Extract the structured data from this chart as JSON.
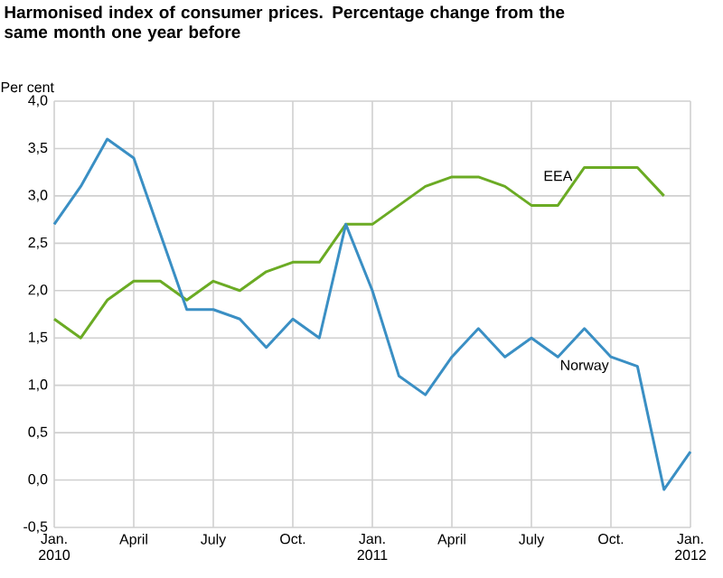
{
  "chart_data": {
    "type": "line",
    "title": "Harmonised index of consumer prices. Percentage change from the same month one year before",
    "ylabel": "Per cent",
    "x": [
      "2010-01",
      "2010-02",
      "2010-03",
      "2010-04",
      "2010-05",
      "2010-06",
      "2010-07",
      "2010-08",
      "2010-09",
      "2010-10",
      "2010-11",
      "2010-12",
      "2011-01",
      "2011-02",
      "2011-03",
      "2011-04",
      "2011-05",
      "2011-06",
      "2011-07",
      "2011-08",
      "2011-09",
      "2011-10",
      "2011-11",
      "2011-12",
      "2012-01"
    ],
    "series": [
      {
        "name": "EEA",
        "color": "#6bab24",
        "values": [
          1.7,
          1.5,
          1.9,
          2.1,
          2.1,
          1.9,
          2.1,
          2.0,
          2.2,
          2.3,
          2.3,
          2.7,
          2.7,
          2.9,
          3.1,
          3.2,
          3.2,
          3.1,
          2.9,
          2.9,
          3.3,
          3.3,
          3.3,
          3.0,
          null
        ]
      },
      {
        "name": "Norway",
        "color": "#3a8fc4",
        "values": [
          2.7,
          3.1,
          3.6,
          3.4,
          2.6,
          1.8,
          1.8,
          1.7,
          1.4,
          1.7,
          1.5,
          2.7,
          2.0,
          1.1,
          0.9,
          1.3,
          1.6,
          1.3,
          1.5,
          1.3,
          1.6,
          1.3,
          1.2,
          -0.1,
          0.3
        ]
      }
    ],
    "ylim": [
      -0.5,
      4.0
    ],
    "yticks": [
      {
        "value": -0.5,
        "label": "-0,5"
      },
      {
        "value": 0,
        "label": "0,0"
      },
      {
        "value": 0.5,
        "label": "0,5"
      },
      {
        "value": 1,
        "label": "1,0"
      },
      {
        "value": 1.5,
        "label": "1,5"
      },
      {
        "value": 2,
        "label": "2,0"
      },
      {
        "value": 2.5,
        "label": "2,5"
      },
      {
        "value": 3,
        "label": "3,0"
      },
      {
        "value": 3.5,
        "label": "3,5"
      },
      {
        "value": 4,
        "label": "4,0"
      }
    ],
    "xlim": [
      "2010-01",
      "2012-01"
    ],
    "xticks": [
      {
        "value": "2010-01",
        "label": "Jan. 2010"
      },
      {
        "value": "2010-04",
        "label": "April"
      },
      {
        "value": "2010-07",
        "label": "July"
      },
      {
        "value": "2010-10",
        "label": "Oct."
      },
      {
        "value": "2011-01",
        "label": "Jan. 2011"
      },
      {
        "value": "2011-04",
        "label": "April"
      },
      {
        "value": "2011-07",
        "label": "July"
      },
      {
        "value": "2011-10",
        "label": "Oct."
      },
      {
        "value": "2012-01",
        "label": "Jan. 2012"
      }
    ],
    "grid": true,
    "legend": false,
    "marker": "none",
    "line_style": "solid"
  }
}
